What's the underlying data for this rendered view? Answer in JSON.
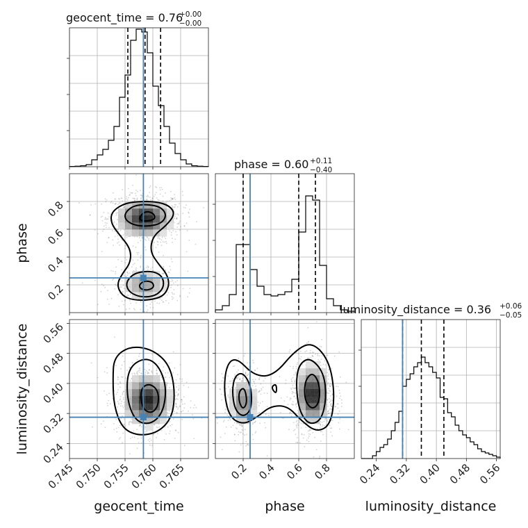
{
  "colors": {
    "truth": "#4682b4",
    "contour": "#000000",
    "samples": "#7f7f7f",
    "grid": "#b0b0b0"
  },
  "chart_data": {
    "type": "corner",
    "grid": true,
    "parameters": [
      {
        "name": "geocent_time",
        "axis_label": "geocent_time",
        "title_prefix": "geocent_time = 0.76",
        "title_sup": "+0.00",
        "title_sub": "−0.00",
        "range": [
          0.745,
          0.77
        ],
        "ticks": [
          0.745,
          0.75,
          0.755,
          0.76,
          0.765
        ],
        "tick_labels": [
          "0.745",
          "0.750",
          "0.755",
          "0.760",
          "0.765"
        ],
        "truth": 0.7583,
        "quantiles": [
          0.7555,
          0.7586,
          0.7614
        ],
        "histogram": {
          "edges": [
            0.745,
            0.746,
            0.747,
            0.748,
            0.749,
            0.75,
            0.751,
            0.752,
            0.753,
            0.754,
            0.755,
            0.756,
            0.757,
            0.758,
            0.759,
            0.76,
            0.761,
            0.762,
            0.763,
            0.764,
            0.765,
            0.766,
            0.767,
            0.768,
            0.769,
            0.77
          ],
          "heights": [
            0.002,
            0.004,
            0.007,
            0.015,
            0.05,
            0.085,
            0.125,
            0.19,
            0.29,
            0.5,
            0.66,
            0.91,
            0.99,
            0.97,
            0.82,
            0.58,
            0.44,
            0.29,
            0.17,
            0.095,
            0.05,
            0.02,
            0.007,
            0.004,
            0.002
          ]
        }
      },
      {
        "name": "phase",
        "axis_label": "phase",
        "title_prefix": "phase = 0.60",
        "title_sup": "+0.11",
        "title_sub": "−0.40",
        "range": [
          0.0,
          1.0
        ],
        "ticks": [
          0.2,
          0.4,
          0.6,
          0.8
        ],
        "tick_labels": [
          "0.2",
          "0.4",
          "0.6",
          "0.8"
        ],
        "truth": 0.25,
        "quantiles": [
          0.2,
          0.6,
          0.72
        ],
        "histogram": {
          "edges": [
            0.0,
            0.05,
            0.1,
            0.15,
            0.2,
            0.25,
            0.3,
            0.35,
            0.4,
            0.45,
            0.5,
            0.55,
            0.6,
            0.65,
            0.7,
            0.75,
            0.8,
            0.85,
            0.9,
            0.95,
            1.0
          ],
          "heights": [
            0.02,
            0.05,
            0.13,
            0.49,
            0.49,
            0.31,
            0.19,
            0.13,
            0.12,
            0.13,
            0.15,
            0.24,
            0.58,
            0.84,
            0.81,
            0.34,
            0.1,
            0.05,
            0.02,
            0.01
          ]
        }
      },
      {
        "name": "luminosity_distance",
        "axis_label": "luminosity_distance",
        "title_prefix": "luminosity_distance = 0.36",
        "title_sup": "+0.06",
        "title_sub": "−0.05",
        "range": [
          0.2,
          0.57
        ],
        "ticks": [
          0.24,
          0.32,
          0.4,
          0.48,
          0.56
        ],
        "tick_labels": [
          "0.24",
          "0.32",
          "0.40",
          "0.48",
          "0.56"
        ],
        "truth": 0.31,
        "quantiles": [
          0.31,
          0.36,
          0.42
        ],
        "histogram": {
          "edges": [
            0.2,
            0.21,
            0.22,
            0.23,
            0.24,
            0.25,
            0.26,
            0.27,
            0.28,
            0.29,
            0.3,
            0.31,
            0.32,
            0.33,
            0.34,
            0.35,
            0.36,
            0.37,
            0.38,
            0.39,
            0.4,
            0.41,
            0.42,
            0.43,
            0.44,
            0.45,
            0.46,
            0.47,
            0.48,
            0.49,
            0.5,
            0.51,
            0.52,
            0.53,
            0.54,
            0.55,
            0.56,
            0.57
          ],
          "heights": [
            0.0,
            0.0,
            0.0,
            0.02,
            0.05,
            0.08,
            0.1,
            0.14,
            0.2,
            0.26,
            0.34,
            0.52,
            0.57,
            0.61,
            0.66,
            0.69,
            0.73,
            0.69,
            0.66,
            0.62,
            0.58,
            0.44,
            0.43,
            0.33,
            0.3,
            0.24,
            0.2,
            0.17,
            0.15,
            0.12,
            0.1,
            0.07,
            0.05,
            0.04,
            0.03,
            0.02,
            0.01
          ]
        }
      }
    ],
    "pairs": [
      {
        "x": "geocent_time",
        "y": "phase",
        "density_peaks": [
          {
            "x": 0.7585,
            "y": 0.68,
            "sx": 0.0025,
            "sy": 0.07,
            "w": 1.0
          },
          {
            "x": 0.7585,
            "y": 0.2,
            "sx": 0.0022,
            "sy": 0.06,
            "w": 0.45
          }
        ],
        "contours": [
          {
            "level": "outer",
            "points": [
              [
                0.7525,
                0.72
              ],
              [
                0.7545,
                0.78
              ],
              [
                0.757,
                0.8
              ],
              [
                0.7605,
                0.8
              ],
              [
                0.763,
                0.77
              ],
              [
                0.764,
                0.71
              ],
              [
                0.7625,
                0.63
              ],
              [
                0.76,
                0.55
              ],
              [
                0.7595,
                0.44
              ],
              [
                0.761,
                0.35
              ],
              [
                0.7625,
                0.28
              ],
              [
                0.763,
                0.2
              ],
              [
                0.762,
                0.12
              ],
              [
                0.7595,
                0.09
              ],
              [
                0.7565,
                0.09
              ],
              [
                0.7545,
                0.12
              ],
              [
                0.7535,
                0.2
              ],
              [
                0.7545,
                0.28
              ],
              [
                0.756,
                0.36
              ],
              [
                0.756,
                0.46
              ],
              [
                0.754,
                0.56
              ],
              [
                0.7525,
                0.64
              ]
            ]
          },
          {
            "level": "middle",
            "points": [
              [
                0.755,
                0.72
              ],
              [
                0.7565,
                0.77
              ],
              [
                0.759,
                0.78
              ],
              [
                0.7615,
                0.76
              ],
              [
                0.7625,
                0.7
              ],
              [
                0.7615,
                0.64
              ],
              [
                0.759,
                0.62
              ],
              [
                0.7565,
                0.63
              ],
              [
                0.755,
                0.67
              ]
            ]
          },
          {
            "level": "middle",
            "points": [
              [
                0.7555,
                0.24
              ],
              [
                0.757,
                0.29
              ],
              [
                0.76,
                0.3
              ],
              [
                0.7618,
                0.26
              ],
              [
                0.762,
                0.18
              ],
              [
                0.7605,
                0.12
              ],
              [
                0.758,
                0.11
              ],
              [
                0.756,
                0.14
              ],
              [
                0.7552,
                0.19
              ]
            ]
          },
          {
            "level": "inner",
            "points": [
              [
                0.7575,
                0.68
              ],
              [
                0.7585,
                0.73
              ],
              [
                0.76,
                0.72
              ],
              [
                0.7605,
                0.68
              ],
              [
                0.7595,
                0.66
              ],
              [
                0.758,
                0.66
              ]
            ]
          },
          {
            "level": "inner",
            "points": [
              [
                0.7575,
                0.2
              ],
              [
                0.7585,
                0.23
              ],
              [
                0.76,
                0.22
              ],
              [
                0.7602,
                0.18
              ],
              [
                0.759,
                0.16
              ],
              [
                0.7578,
                0.17
              ]
            ]
          }
        ]
      },
      {
        "x": "geocent_time",
        "y": "luminosity_distance",
        "density_peaks": [
          {
            "x": 0.759,
            "y": 0.355,
            "sx": 0.0022,
            "sy": 0.035,
            "w": 1.0
          }
        ],
        "contours": [
          {
            "level": "outer",
            "points": [
              [
                0.753,
                0.47
              ],
              [
                0.756,
                0.5
              ],
              [
                0.76,
                0.49
              ],
              [
                0.763,
                0.45
              ],
              [
                0.764,
                0.38
              ],
              [
                0.7635,
                0.31
              ],
              [
                0.761,
                0.27
              ],
              [
                0.7575,
                0.26
              ],
              [
                0.7545,
                0.28
              ],
              [
                0.753,
                0.34
              ],
              [
                0.7528,
                0.41
              ]
            ]
          },
          {
            "level": "middle",
            "points": [
              [
                0.7555,
                0.44
              ],
              [
                0.7585,
                0.47
              ],
              [
                0.761,
                0.45
              ],
              [
                0.7625,
                0.39
              ],
              [
                0.7618,
                0.32
              ],
              [
                0.7595,
                0.29
              ],
              [
                0.7568,
                0.3
              ],
              [
                0.7553,
                0.36
              ]
            ]
          },
          {
            "level": "inner",
            "points": [
              [
                0.758,
                0.39
              ],
              [
                0.7595,
                0.4
              ],
              [
                0.761,
                0.38
              ],
              [
                0.761,
                0.34
              ],
              [
                0.7598,
                0.32
              ],
              [
                0.7583,
                0.33
              ],
              [
                0.7578,
                0.36
              ]
            ]
          }
        ]
      },
      {
        "x": "phase",
        "y": "luminosity_distance",
        "density_peaks": [
          {
            "x": 0.7,
            "y": 0.37,
            "sx": 0.06,
            "sy": 0.04,
            "w": 1.0
          },
          {
            "x": 0.2,
            "y": 0.35,
            "sx": 0.05,
            "sy": 0.035,
            "w": 0.55
          }
        ],
        "contours": [
          {
            "level": "outer",
            "points": [
              [
                0.08,
                0.45
              ],
              [
                0.15,
                0.47
              ],
              [
                0.28,
                0.42
              ],
              [
                0.42,
                0.42
              ],
              [
                0.58,
                0.49
              ],
              [
                0.7,
                0.51
              ],
              [
                0.82,
                0.46
              ],
              [
                0.86,
                0.37
              ],
              [
                0.83,
                0.29
              ],
              [
                0.73,
                0.27
              ],
              [
                0.62,
                0.3
              ],
              [
                0.52,
                0.34
              ],
              [
                0.4,
                0.34
              ],
              [
                0.3,
                0.31
              ],
              [
                0.2,
                0.29
              ],
              [
                0.1,
                0.31
              ],
              [
                0.06,
                0.38
              ]
            ]
          },
          {
            "level": "middle",
            "points": [
              [
                0.14,
                0.42
              ],
              [
                0.2,
                0.43
              ],
              [
                0.26,
                0.39
              ],
              [
                0.26,
                0.33
              ],
              [
                0.2,
                0.31
              ],
              [
                0.14,
                0.33
              ],
              [
                0.12,
                0.38
              ]
            ]
          },
          {
            "level": "middle",
            "points": [
              [
                0.6,
                0.45
              ],
              [
                0.68,
                0.47
              ],
              [
                0.78,
                0.43
              ],
              [
                0.8,
                0.36
              ],
              [
                0.76,
                0.3
              ],
              [
                0.67,
                0.29
              ],
              [
                0.6,
                0.33
              ],
              [
                0.58,
                0.4
              ]
            ]
          },
          {
            "level": "inner",
            "points": [
              [
                0.17,
                0.38
              ],
              [
                0.21,
                0.39
              ],
              [
                0.23,
                0.35
              ],
              [
                0.2,
                0.33
              ],
              [
                0.17,
                0.35
              ]
            ]
          },
          {
            "level": "inner",
            "points": [
              [
                0.65,
                0.41
              ],
              [
                0.7,
                0.43
              ],
              [
                0.75,
                0.4
              ],
              [
                0.75,
                0.35
              ],
              [
                0.7,
                0.33
              ],
              [
                0.65,
                0.35
              ],
              [
                0.64,
                0.38
              ]
            ]
          },
          {
            "level": "inner",
            "points": [
              [
                0.4,
                0.39
              ],
              [
                0.44,
                0.4
              ],
              [
                0.44,
                0.37
              ]
            ]
          }
        ]
      }
    ]
  }
}
